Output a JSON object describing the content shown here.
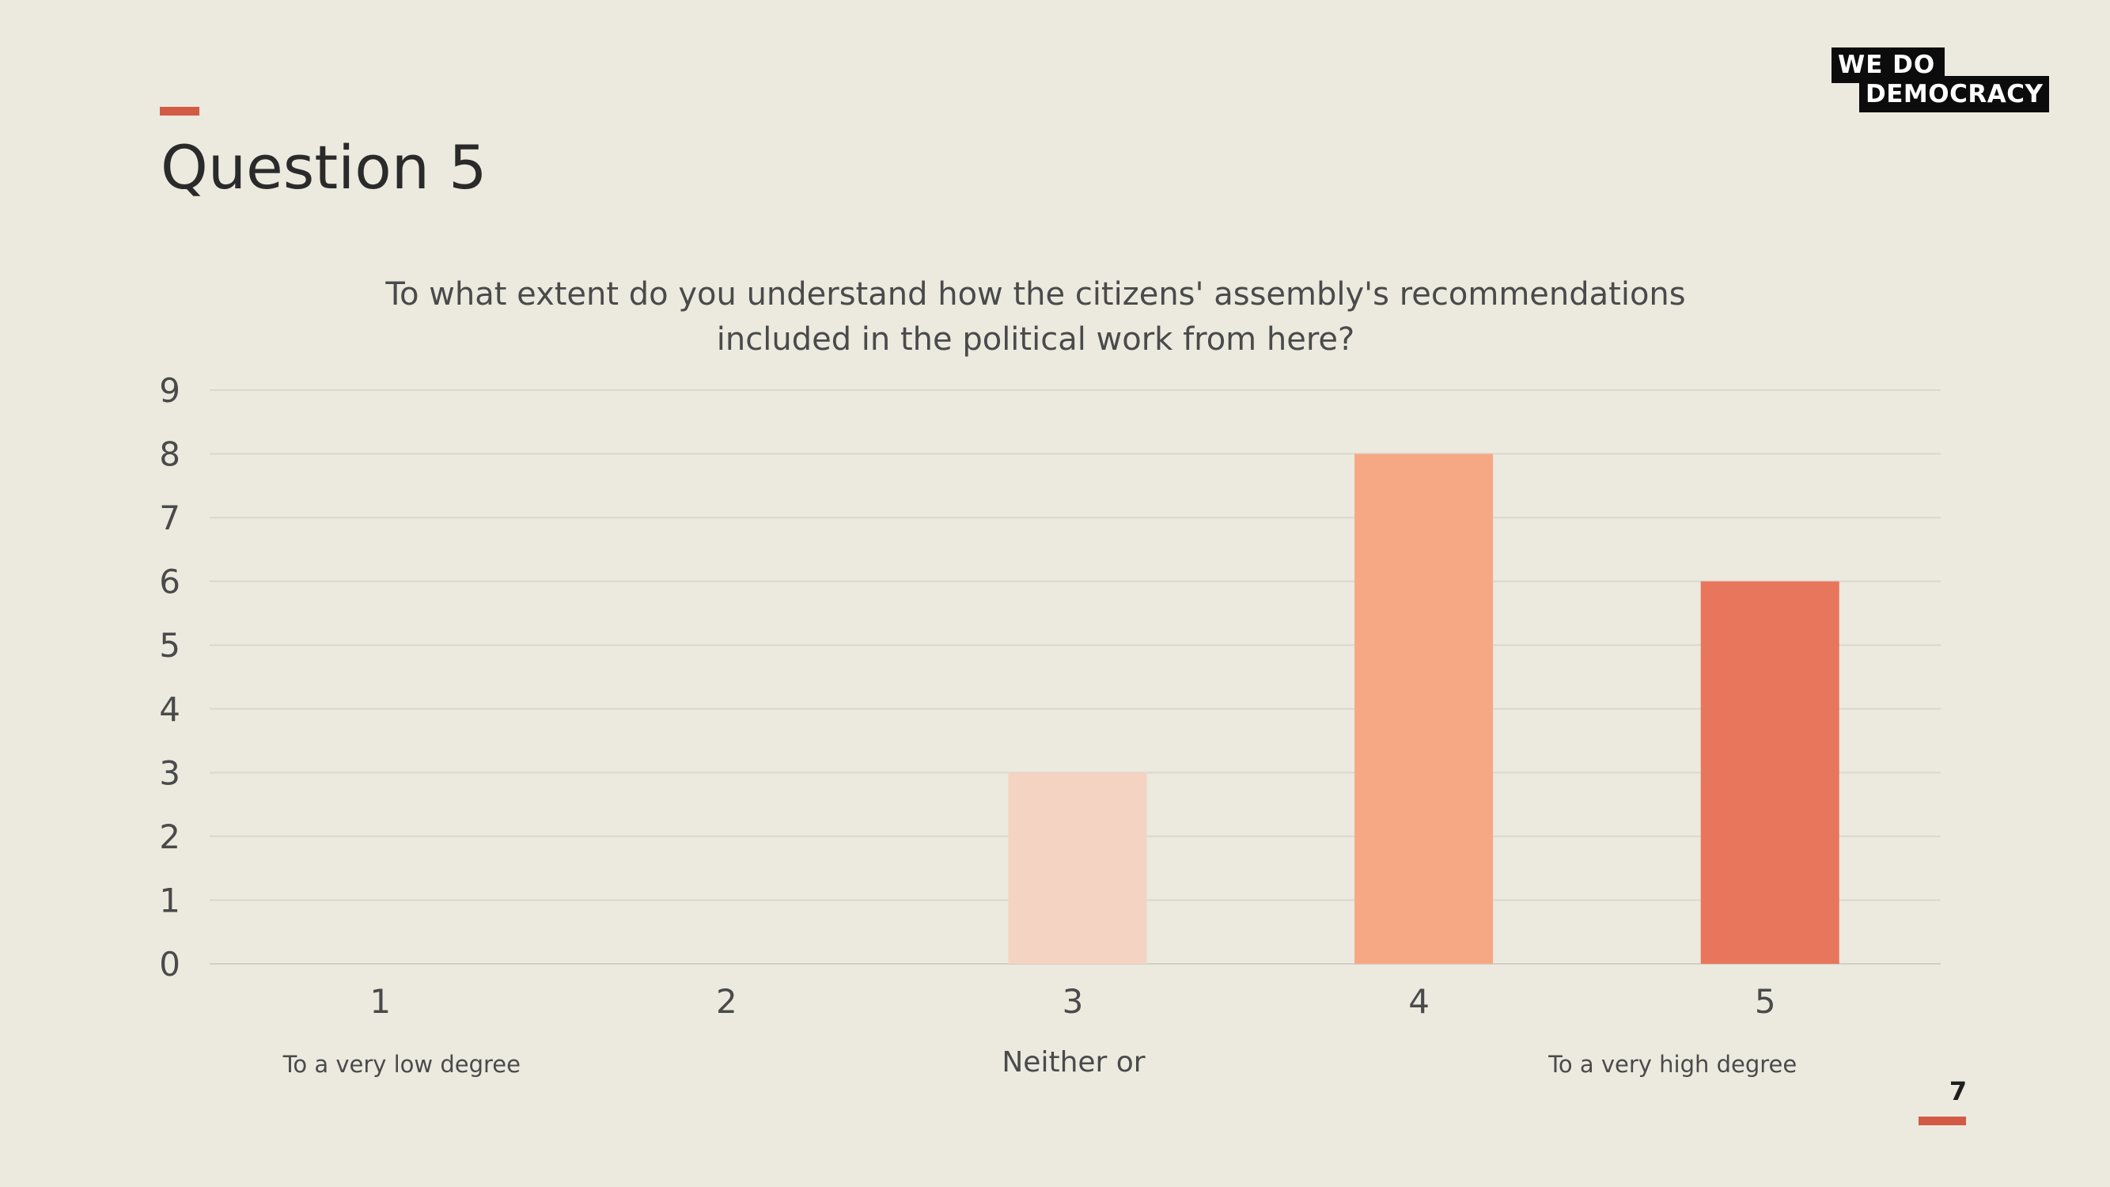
{
  "slide": {
    "title": "Question 5",
    "page_number": "7",
    "accent_color": "#D35B45"
  },
  "logo": {
    "line1": "WE  DO",
    "line2": "DEMOCRACY"
  },
  "chart_data": {
    "type": "bar",
    "title_lines": [
      "To what extent do you understand how the citizens' assembly's recommendations",
      "included in the political work from here?"
    ],
    "categories": [
      "1",
      "2",
      "3",
      "4",
      "5"
    ],
    "values": [
      0,
      0,
      3,
      8,
      6
    ],
    "bar_colors": [
      "#F5D3C3",
      "#F5D3C3",
      "#F5D3C3",
      "#F6A885",
      "#E8765C"
    ],
    "yticks": [
      "0",
      "1",
      "2",
      "3",
      "4",
      "5",
      "6",
      "7",
      "8",
      "9"
    ],
    "ylim": [
      0,
      9
    ],
    "grid": true,
    "scale_labels": [
      {
        "text": "To a very low degree",
        "category": "1"
      },
      {
        "text": "Neither or",
        "category": "3"
      },
      {
        "text": "To a very high degree",
        "category": "5"
      }
    ]
  }
}
